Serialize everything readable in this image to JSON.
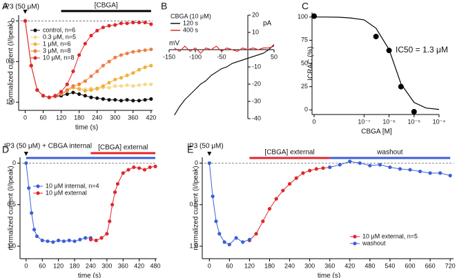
{
  "chart_data": [
    {
      "type": "line",
      "panel": "A",
      "xlabel": "time (s)",
      "ylabel": "normalized current (I/Ipeak)",
      "markers": true,
      "lines": true,
      "legend": "upper left",
      "zero_line": true,
      "annotations": [
        {
          "text": "IP3 (50 μM)",
          "x": 0
        }
      ],
      "bars": [
        {
          "text": "[CBGA]",
          "range": [
            120,
            420
          ],
          "color": "#000000"
        }
      ],
      "x": [
        0,
        20,
        40,
        60,
        80,
        100,
        120,
        140,
        160,
        180,
        200,
        220,
        240,
        260,
        280,
        300,
        320,
        340,
        360,
        380,
        400,
        420
      ],
      "xlim": [
        -15,
        425
      ],
      "xticks": [
        0,
        60,
        120,
        180,
        240,
        300,
        360,
        420
      ],
      "ylim": [
        1.1,
        -0.07
      ],
      "yticks": [
        0,
        0.5,
        {
          "value": 1,
          "label": "1.0"
        }
      ],
      "series": [
        {
          "name": "control, n=6",
          "color": "#111111",
          "values": [
            0,
            0.55,
            0.85,
            0.92,
            0.94,
            0.93,
            0.92,
            0.9,
            0.88,
            0.9,
            0.92,
            0.94,
            0.95,
            0.96,
            0.97,
            0.97,
            0.98,
            0.97,
            0.98,
            0.98,
            0.97,
            0.96
          ]
        },
        {
          "name": "0.3 μM, n=5",
          "color": "#f5d98c",
          "values": [
            0,
            0.55,
            0.85,
            0.92,
            0.94,
            0.93,
            0.9,
            0.86,
            0.82,
            0.83,
            0.84,
            0.83,
            0.84,
            0.82,
            0.82,
            0.8,
            0.8,
            0.79,
            0.8,
            0.79,
            0.78,
            0.78
          ]
        },
        {
          "name": "1 μM, n=6",
          "color": "#f0b03c",
          "values": [
            0,
            0.55,
            0.85,
            0.92,
            0.94,
            0.93,
            0.9,
            0.86,
            0.82,
            0.84,
            0.86,
            0.85,
            0.83,
            0.8,
            0.76,
            0.72,
            0.7,
            0.67,
            0.64,
            0.6,
            0.57,
            0.55
          ]
        },
        {
          "name": "3 μM, n=8",
          "color": "#ec7f42",
          "values": [
            0,
            0.55,
            0.85,
            0.92,
            0.94,
            0.93,
            0.9,
            0.85,
            0.8,
            0.78,
            0.74,
            0.68,
            0.62,
            0.55,
            0.5,
            0.45,
            0.42,
            0.4,
            0.38,
            0.37,
            0.36,
            0.35
          ]
        },
        {
          "name": "10 μM, n=8",
          "color": "#e0262a",
          "values": [
            0,
            0.55,
            0.85,
            0.92,
            0.94,
            0.92,
            0.87,
            0.78,
            0.62,
            0.42,
            0.28,
            0.18,
            0.12,
            0.08,
            0.06,
            0.05,
            0.03,
            0.03,
            0.02,
            0.02,
            0.02,
            0.04
          ]
        }
      ]
    },
    {
      "type": "line",
      "panel": "B",
      "axes": "cross",
      "xlabel": "mV",
      "ylabel": "pA",
      "legend_title": "CBGA (10 μM)",
      "legend": "upper left",
      "markers": false,
      "lines": true,
      "x": [
        -140,
        -130,
        -120,
        -110,
        -100,
        -90,
        -80,
        -70,
        -60,
        -50,
        -40,
        -30,
        -20,
        -10,
        0,
        10,
        20,
        30,
        40,
        50
      ],
      "xlim": [
        -150,
        50
      ],
      "xticks": [
        -150,
        -100,
        -50,
        50
      ],
      "ylim": [
        -40,
        20
      ],
      "yticks": [
        -40,
        -30,
        -20,
        -10,
        10,
        20
      ],
      "series": [
        {
          "name": "120 s",
          "color": "#111111",
          "values": [
            -38,
            -33,
            -29,
            -26,
            -23,
            -20,
            -18,
            -15,
            -13,
            -11,
            -10,
            -8,
            -7,
            -6,
            -5,
            -4,
            -3,
            -2,
            0,
            3
          ]
        },
        {
          "name": "400 s",
          "color": "#e0262a",
          "values": [
            1,
            -1,
            2,
            -1,
            1,
            -2,
            1,
            0,
            2,
            -1,
            1,
            0,
            -1,
            1,
            0,
            1,
            0,
            1,
            1,
            2
          ]
        }
      ]
    },
    {
      "type": "scatter",
      "panel": "C",
      "xscale": "log",
      "xlabel": "CBGA [M]",
      "ylabel": "ICRAC (%)",
      "annotation": "IC50 = 1.3 μM",
      "xlim": [
        1e-09,
        0.0001
      ],
      "xticks": [
        0,
        {
          "value": 1e-07,
          "label": "10⁻⁷"
        },
        {
          "value": 1e-06,
          "label": "10⁻⁶"
        },
        {
          "value": 1e-05,
          "label": "10⁻⁵"
        },
        {
          "value": 0.0001,
          "label": "10⁻⁴"
        }
      ],
      "ylim": [
        -5,
        105
      ],
      "yticks": [
        0,
        25,
        50,
        75,
        100
      ],
      "series": [
        {
          "color": "#000000",
          "markers": true,
          "lines": false,
          "x": [
            0,
            3e-07,
            1e-06,
            3e-06,
            1e-05
          ],
          "values": [
            101,
            79,
            64,
            25,
            -2
          ]
        },
        {
          "color": "#000000",
          "markers": false,
          "lines": true,
          "x": [
            1e-09,
            3e-09,
            1e-08,
            3e-08,
            1e-07,
            3e-07,
            1e-06,
            3e-06,
            1e-05,
            3e-05,
            0.0001
          ],
          "values": [
            100,
            100,
            99.8,
            99,
            97,
            88,
            65,
            28,
            8,
            2,
            0.5
          ]
        }
      ]
    },
    {
      "type": "line",
      "panel": "D",
      "xlabel": "time (s)",
      "ylabel": "normalized current (I/Ipeak)",
      "markers": true,
      "lines": true,
      "legend": "center left",
      "zero_line": true,
      "annotations": [
        {
          "text": "IP3 (50 μM) + CBGA internal",
          "x": 0
        }
      ],
      "bars": [
        {
          "range": [
            0,
            480
          ],
          "color": "#3a5fd9"
        },
        {
          "text": "[CBGA] external",
          "range": [
            240,
            480
          ],
          "color": "#e0262a"
        }
      ],
      "xlim": [
        -15,
        485
      ],
      "xticks": [
        0,
        60,
        120,
        180,
        240,
        300,
        360,
        420,
        480
      ],
      "ylim": [
        1.15,
        -0.07
      ],
      "yticks": [
        0,
        0.5,
        {
          "value": 1,
          "label": "1.0"
        }
      ],
      "series": [
        {
          "name": "10 μM internal, n=4",
          "color": "#3a5fd9",
          "x": [
            0,
            10,
            20,
            30,
            40,
            60,
            80,
            100,
            120,
            140,
            160,
            180,
            200,
            220,
            240
          ],
          "values": [
            0,
            0.3,
            0.6,
            0.8,
            0.88,
            0.93,
            0.94,
            0.95,
            0.93,
            0.94,
            0.93,
            0.94,
            0.92,
            0.9,
            0.9
          ]
        },
        {
          "name": "10 μM external",
          "color": "#e0262a",
          "x": [
            240,
            260,
            280,
            300,
            310,
            320,
            330,
            340,
            360,
            380,
            400,
            420,
            440,
            460,
            480
          ],
          "values": [
            0.92,
            0.93,
            0.9,
            0.85,
            0.7,
            0.5,
            0.35,
            0.25,
            0.12,
            0.08,
            0.05,
            0.06,
            0.08,
            0.05,
            0.04
          ]
        }
      ]
    },
    {
      "type": "line",
      "panel": "E",
      "xlabel": "time (s)",
      "ylabel": "normalized current (I/Ipeak)",
      "markers": true,
      "lines": true,
      "legend": "lower right",
      "zero_line": true,
      "annotations": [
        {
          "text": "IP3 (50 μM)",
          "x": 0
        }
      ],
      "bars": [
        {
          "text": "[CBGA] external",
          "range": [
            120,
            360
          ],
          "color": "#e0262a"
        },
        {
          "text": "washout",
          "range": [
            360,
            720
          ],
          "color": "#3a5fd9"
        }
      ],
      "xlim": [
        -15,
        730
      ],
      "xticks": [
        0,
        60,
        120,
        180,
        240,
        300,
        360,
        420,
        480,
        540,
        600,
        660,
        720
      ],
      "ylim": [
        1.15,
        -0.07
      ],
      "yticks": [
        0,
        0.5,
        {
          "value": 1,
          "label": "1.0"
        }
      ],
      "series": [
        {
          "name": "10 μM external, n=5",
          "color": "#e0262a",
          "x": [
            120,
            140,
            160,
            180,
            200,
            220,
            240,
            260,
            280,
            300,
            320,
            340,
            360
          ],
          "values": [
            0.93,
            0.85,
            0.7,
            0.55,
            0.43,
            0.33,
            0.25,
            0.18,
            0.12,
            0.09,
            0.07,
            0.06,
            0.05
          ]
        },
        {
          "name": "washout",
          "color": "#3a5fd9",
          "x": [
            0,
            10,
            20,
            30,
            45,
            60,
            80,
            100,
            120,
            240,
            360,
            390,
            420,
            450,
            480,
            510,
            540,
            570,
            600,
            630,
            660,
            690,
            720
          ],
          "values": [
            0,
            0.4,
            0.7,
            0.85,
            0.95,
            0.98,
            0.9,
            0.95,
            0.92,
            null,
            0.05,
            0.02,
            -0.02,
            0,
            0.03,
            0.02,
            0.05,
            0.07,
            0.08,
            0.1,
            0.12,
            0.12,
            0.15
          ]
        }
      ]
    }
  ]
}
